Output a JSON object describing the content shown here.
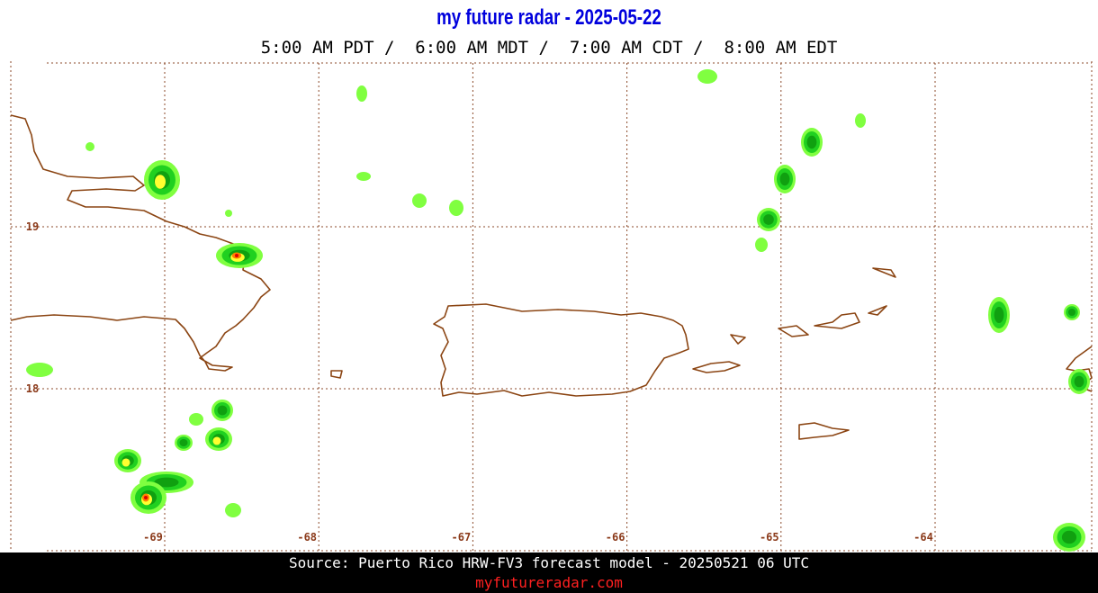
{
  "header": {
    "title": "my future radar - 2025-05-22",
    "subtitle": "5:00 AM PDT /  6:00 AM MDT /  7:00 AM CDT /  8:00 AM EDT"
  },
  "map": {
    "lat_ticks": [
      19,
      18
    ],
    "lon_ticks": [
      -69,
      -68,
      -67,
      -66,
      -65,
      -64
    ]
  },
  "footer": {
    "source": "Source: Puerto Rico HRW-FV3 forecast model - 20250521 06 UTC",
    "link": "myfutureradar.com"
  }
}
